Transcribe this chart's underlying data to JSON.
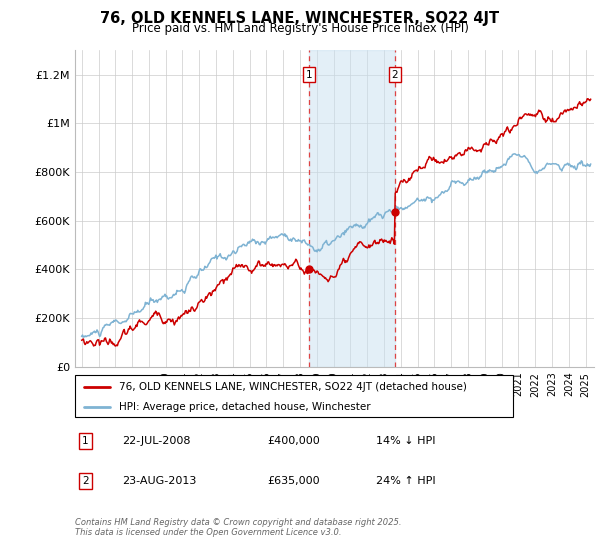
{
  "title": "76, OLD KENNELS LANE, WINCHESTER, SO22 4JT",
  "subtitle": "Price paid vs. HM Land Registry's House Price Index (HPI)",
  "ylabel_ticks": [
    "£0",
    "£200K",
    "£400K",
    "£600K",
    "£800K",
    "£1M",
    "£1.2M"
  ],
  "ylim": [
    0,
    1300000
  ],
  "xlim_start": 1994.6,
  "xlim_end": 2025.5,
  "purchase1_x": 2008.55,
  "purchase1_y": 400000,
  "purchase2_x": 2013.64,
  "purchase2_y": 635000,
  "shade_start": 2008.55,
  "shade_end": 2013.64,
  "line_color_price": "#cc0000",
  "line_color_hpi": "#7fb3d3",
  "legend_price_label": "76, OLD KENNELS LANE, WINCHESTER, SO22 4JT (detached house)",
  "legend_hpi_label": "HPI: Average price, detached house, Winchester",
  "annotation1_date": "22-JUL-2008",
  "annotation1_price": "£400,000",
  "annotation1_hpi": "14% ↓ HPI",
  "annotation2_date": "23-AUG-2013",
  "annotation2_price": "£635,000",
  "annotation2_hpi": "24% ↑ HPI",
  "footer": "Contains HM Land Registry data © Crown copyright and database right 2025.\nThis data is licensed under the Open Government Licence v3.0.",
  "background_color": "#ffffff",
  "grid_color": "#cccccc"
}
